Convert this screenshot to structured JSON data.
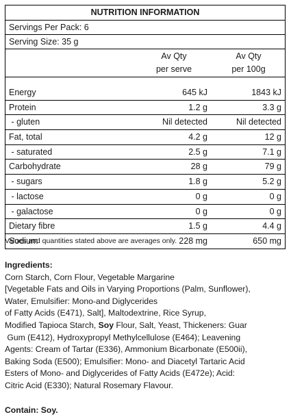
{
  "panel": {
    "title": "NUTRITION INFORMATION",
    "servings_per_pack": "Servings Per Pack: 6",
    "serving_size": "Serving Size: 35 g",
    "col_serve_line1": "Av Qty",
    "col_serve_line2": "per serve",
    "col_100g_line1": "Av Qty",
    "col_100g_line2": "per 100g",
    "rows": [
      {
        "name": "Energy",
        "per_serve": "645 kJ",
        "per_100g": "1843 kJ"
      },
      {
        "name": "Protein",
        "per_serve": "1.2 g",
        "per_100g": "3.3 g"
      },
      {
        "name": " - gluten",
        "per_serve": "Nil detected",
        "per_100g": "Nil detected"
      },
      {
        "name": "Fat, total",
        "per_serve": "4.2 g",
        "per_100g": "12 g"
      },
      {
        "name": " - saturated",
        "per_serve": "2.5 g",
        "per_100g": "7.1 g"
      },
      {
        "name": "Carbohydrate",
        "per_serve": "28 g",
        "per_100g": "79 g"
      },
      {
        "name": " - sugars",
        "per_serve": "1.8 g",
        "per_100g": "5.2 g"
      },
      {
        "name": " - lactose",
        "per_serve": "0 g",
        "per_100g": "0 g"
      },
      {
        "name": " - galactose",
        "per_serve": "0 g",
        "per_100g": "0 g"
      },
      {
        "name": "Dietary fibre",
        "per_serve": "1.5 g",
        "per_100g": "4.4 g"
      },
      {
        "name": "Sodium",
        "per_serve": "228 mg",
        "per_100g": "650 mg"
      }
    ]
  },
  "note": "Values and quantities stated above are averages only.",
  "ingredients": {
    "heading": "Ingredients:",
    "line1": "Corn Starch, Corn Flour, Vegetable Margarine",
    "line2": "[Vegetable Fats and Oils in Varying Proportions (Palm, Sunflower),",
    "line3": "Water, Emulsifier: Mono-and Diglycerides",
    "line4": "of Fatty Acids (E471), Salt], Maltodextrine, Rice Syrup,",
    "line5_pre": "Modified Tapioca Starch, ",
    "line5_bold": "Soy",
    "line5_post": " Flour, Salt, Yeast, Thickeners: Guar",
    "line6": " Gum (E412), Hydroxypropyl Methylcellulose (E464); Leavening",
    "line7": "Agents: Cream of Tartar (E336), Ammonium Bicarbonate (E500ii),",
    "line8": "Baking Soda (E500); Emulsifier: Mono- and Diacetyl Tartaric Acid",
    "line9": "Esters of Mono- and Diglycerides of Fatty Acids (E472e); Acid:",
    "line10": "Citric Acid (E330); Natural Rosemary Flavour."
  },
  "contains": "Contain: Soy."
}
